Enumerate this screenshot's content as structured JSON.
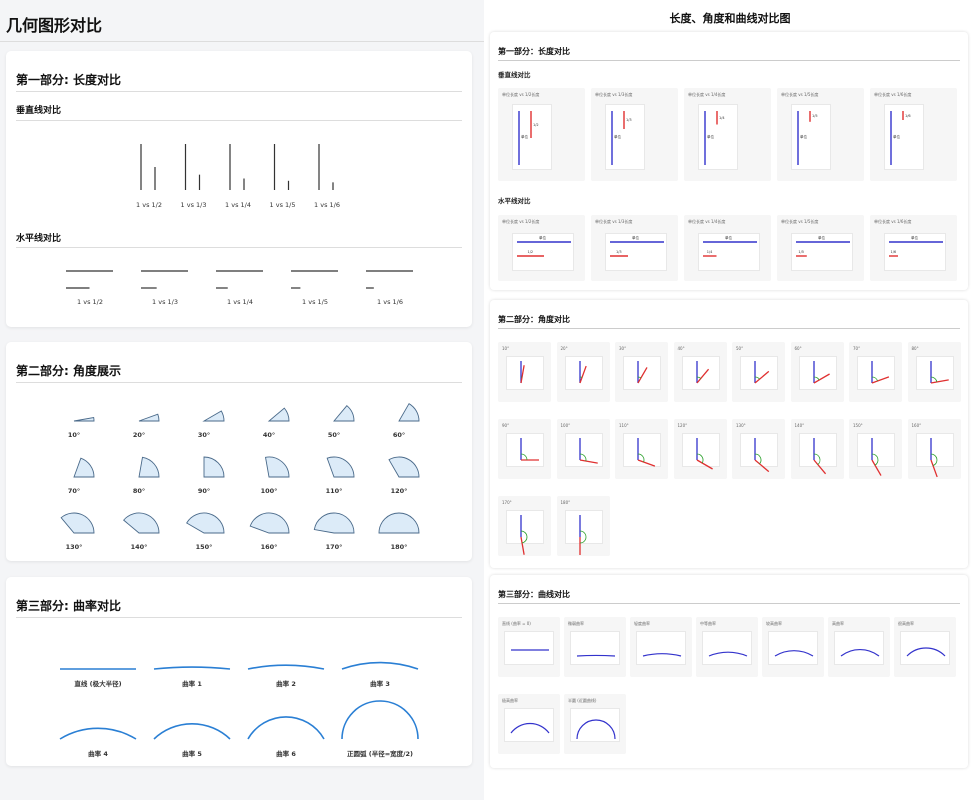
{
  "left": {
    "title": "几何图形对比",
    "sec1": {
      "title": "第一部分: 长度对比",
      "vertical_title": "垂直线对比",
      "horizontal_title": "水平线对比",
      "ratios": [
        "1 vs 1/2",
        "1 vs 1/3",
        "1 vs 1/4",
        "1 vs 1/5",
        "1 vs 1/6"
      ],
      "denominators": [
        2,
        3,
        4,
        5,
        6
      ]
    },
    "sec2": {
      "title": "第二部分: 角度展示",
      "angles": [
        10,
        20,
        30,
        40,
        50,
        60,
        70,
        80,
        90,
        100,
        110,
        120,
        130,
        140,
        150,
        160,
        170,
        180
      ],
      "labels": [
        "10°",
        "20°",
        "30°",
        "40°",
        "50°",
        "60°",
        "70°",
        "80°",
        "90°",
        "100°",
        "110°",
        "120°",
        "130°",
        "140°",
        "150°",
        "160°",
        "170°",
        "180°"
      ]
    },
    "sec3": {
      "title": "第三部分: 曲率对比",
      "labels": [
        "直线 (极大半径)",
        "曲率 1",
        "曲率 2",
        "曲率 3",
        "曲率 4",
        "曲率 5",
        "曲率 6",
        "正圆弧 (半径=宽度/2)"
      ],
      "sagitta": [
        0,
        0.05,
        0.1,
        0.17,
        0.28,
        0.4,
        0.58,
        1.0
      ]
    }
  },
  "right": {
    "title": "长度、角度和曲线对比图",
    "sec1": {
      "title": "第一部分：长度对比",
      "vertical_title": "垂直线对比",
      "horizontal_title": "水平线对比",
      "tile_labels": [
        "单位长度 vs 1/2长度",
        "单位长度 vs 1/3长度",
        "单位长度 vs 1/4长度",
        "单位长度 vs 1/5长度",
        "单位长度 vs 1/6长度"
      ],
      "unit_label": "单位",
      "part_labels": [
        "1/2",
        "1/3",
        "1/4",
        "1/5",
        "1/6"
      ]
    },
    "sec2": {
      "title": "第二部分：角度对比",
      "angles": [
        10,
        20,
        30,
        40,
        50,
        60,
        70,
        80,
        90,
        100,
        110,
        120,
        130,
        140,
        150,
        160,
        170,
        180
      ],
      "labels": [
        "10°",
        "20°",
        "30°",
        "40°",
        "50°",
        "60°",
        "70°",
        "80°",
        "90°",
        "100°",
        "110°",
        "120°",
        "130°",
        "140°",
        "150°",
        "160°",
        "170°",
        "180°"
      ]
    },
    "sec3": {
      "title": "第三部分：曲线对比",
      "labels": [
        "直线 (曲率 = 0)",
        "微弱曲率",
        "轻度曲率",
        "中等曲率",
        "较高曲率",
        "高曲率",
        "很高曲率",
        "极高曲率",
        "半圆 (近圆曲线)"
      ],
      "sagitta": [
        0,
        0.03,
        0.12,
        0.2,
        0.28,
        0.34,
        0.42,
        0.5,
        1.0
      ]
    }
  },
  "colors": {
    "blue": "#3333cc",
    "red": "#e03030",
    "green": "#2aa02a",
    "sector_fill": "#dcebf8",
    "sector_stroke": "#4a6a8a",
    "curve_left": "#2a7fd4"
  }
}
